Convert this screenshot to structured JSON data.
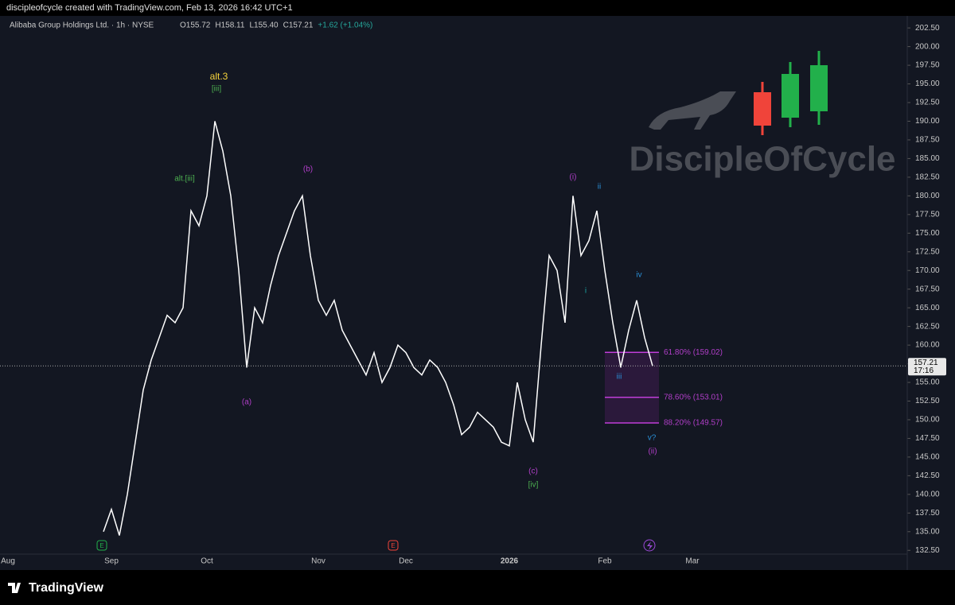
{
  "header": "discipleofcycle created with TradingView.com, Feb 13, 2026 16:42 UTC+1",
  "chart_data": {
    "type": "line",
    "symbol": "Alibaba Group Holdings Ltd. · 1h · NYSE",
    "ohlc": [
      "O155.72",
      "H158.11",
      "L155.40",
      "C157.21",
      "+1.62 (+1.04%)"
    ],
    "categories": [
      "Aug",
      null,
      null,
      null,
      null,
      null,
      null,
      null,
      null,
      null,
      null,
      null,
      null,
      "Sep",
      null,
      null,
      null,
      null,
      null,
      null,
      null,
      null,
      null,
      null,
      null,
      "Oct",
      null,
      null,
      null,
      null,
      null,
      null,
      null,
      null,
      null,
      null,
      null,
      null,
      null,
      "Nov",
      null,
      null,
      null,
      null,
      null,
      null,
      null,
      null,
      null,
      null,
      "Dec",
      null,
      null,
      null,
      null,
      null,
      null,
      null,
      null,
      null,
      null,
      null,
      null,
      "2026",
      null,
      null,
      null,
      null,
      null,
      null,
      null,
      null,
      null,
      null,
      null,
      "Feb",
      null,
      null,
      null,
      null,
      null,
      null,
      null,
      null,
      null,
      null,
      "Mar"
    ],
    "series": [
      {
        "name": "ALIBABA",
        "color": "#ffffff",
        "values": [
          null,
          null,
          null,
          null,
          null,
          null,
          null,
          null,
          null,
          null,
          null,
          null,
          135,
          138,
          134.5,
          140,
          147,
          154,
          158,
          161,
          164,
          163,
          165,
          178,
          176,
          180,
          190,
          186,
          180,
          170,
          157,
          165,
          163,
          168,
          172,
          175,
          178,
          180,
          172,
          166,
          164,
          166,
          162,
          160,
          158,
          156,
          159,
          155,
          157,
          160,
          159,
          157,
          156,
          158,
          157,
          155,
          152,
          148,
          149,
          151,
          150,
          149,
          147,
          146.5,
          155,
          150,
          147,
          160,
          172,
          170,
          163,
          180,
          172,
          174,
          178,
          170,
          163,
          157,
          162,
          166,
          161,
          157.21,
          null,
          null,
          null,
          null,
          null
        ]
      }
    ],
    "ylim": [
      132.1,
      203.9
    ],
    "yticks": [
      {
        "value": 132.5,
        "label": "132.50"
      },
      {
        "value": 135,
        "label": "135.00"
      },
      {
        "value": 137.5,
        "label": "137.50"
      },
      {
        "value": 140,
        "label": "140.00"
      },
      {
        "value": 142.5,
        "label": "142.50"
      },
      {
        "value": 145,
        "label": "145.00"
      },
      {
        "value": 147.5,
        "label": "147.50"
      },
      {
        "value": 150,
        "label": "150.00"
      },
      {
        "value": 152.5,
        "label": "152.50"
      },
      {
        "value": 155,
        "label": "155.00"
      },
      {
        "value": 157.5,
        "label": "157.50"
      },
      {
        "value": 160,
        "label": "160.00"
      },
      {
        "value": 162.5,
        "label": "162.50"
      },
      {
        "value": 165,
        "label": "165.00"
      },
      {
        "value": 167.5,
        "label": "167.50"
      },
      {
        "value": 170,
        "label": "170.00"
      },
      {
        "value": 172.5,
        "label": "172.50"
      },
      {
        "value": 175,
        "label": "175.00"
      },
      {
        "value": 177.5,
        "label": "177.50"
      },
      {
        "value": 180,
        "label": "180.00"
      },
      {
        "value": 182.5,
        "label": "182.50"
      },
      {
        "value": 185,
        "label": "185.00"
      },
      {
        "value": 187.5,
        "label": "187.50"
      },
      {
        "value": 190,
        "label": "190.00"
      },
      {
        "value": 192.5,
        "label": "192.50"
      },
      {
        "value": 195,
        "label": "195.00"
      },
      {
        "value": 197.5,
        "label": "197.50"
      },
      {
        "value": 200,
        "label": "200.00"
      },
      {
        "value": 202.5,
        "label": "202.50"
      }
    ],
    "countdown": "17:16",
    "fib_levels": [
      {
        "value": 159.02,
        "label": "61.80% (159.02)"
      },
      {
        "value": 153.01,
        "label": "78.60% (153.01)"
      },
      {
        "value": 149.57,
        "label": "88.20% (149.57)"
      }
    ],
    "annotations": [
      {
        "text": "alt.3",
        "color": "#f5d33c"
      },
      {
        "text": "[iii]",
        "color": "#4caf50"
      },
      {
        "text": "alt.[iii]",
        "color": "#4caf50"
      },
      {
        "text": "(b)",
        "color": "#b03ec8"
      },
      {
        "text": "(a)",
        "color": "#b03ec8"
      },
      {
        "text": "(i)",
        "color": "#b03ec8"
      },
      {
        "text": "ii",
        "color": "#2a8fd6"
      },
      {
        "text": "i",
        "color": "#1aa3a3"
      },
      {
        "text": "iv",
        "color": "#2a8fd6"
      },
      {
        "text": "iii",
        "color": "#2a8fd6"
      },
      {
        "text": "v?",
        "color": "#2a8fd6"
      },
      {
        "text": "(ii)",
        "color": "#b03ec8"
      },
      {
        "text": "(c)",
        "color": "#b03ec8"
      },
      {
        "text": "[iv]",
        "color": "#4caf50"
      }
    ],
    "watermark": "DiscipleOfCycle"
  },
  "footer": "TradingView"
}
